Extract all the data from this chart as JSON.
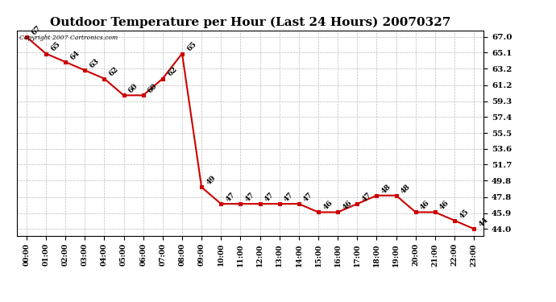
{
  "title": "Outdoor Temperature per Hour (Last 24 Hours) 20070327",
  "hours": [
    "00:00",
    "01:00",
    "02:00",
    "03:00",
    "04:00",
    "05:00",
    "06:00",
    "07:00",
    "08:00",
    "09:00",
    "10:00",
    "11:00",
    "12:00",
    "13:00",
    "14:00",
    "15:00",
    "16:00",
    "17:00",
    "18:00",
    "19:00",
    "20:00",
    "21:00",
    "22:00",
    "23:00"
  ],
  "temps": [
    67,
    65,
    64,
    63,
    62,
    60,
    60,
    62,
    65,
    49,
    47,
    47,
    47,
    47,
    47,
    46,
    46,
    47,
    48,
    48,
    46,
    46,
    45,
    44
  ],
  "line_color": "#cc0000",
  "marker_color": "#cc0000",
  "marker_face": "#cc0000",
  "bg_color": "#ffffff",
  "grid_color": "#bbbbbb",
  "yticks": [
    44.0,
    45.9,
    47.8,
    49.8,
    51.7,
    53.6,
    55.5,
    57.4,
    59.3,
    61.2,
    63.2,
    65.1,
    67.0
  ],
  "ylim": [
    43.2,
    67.8
  ],
  "copyright_text": "Copyright 2007 Cartronics.com",
  "title_fontsize": 11,
  "annotation_fontsize": 6.5
}
